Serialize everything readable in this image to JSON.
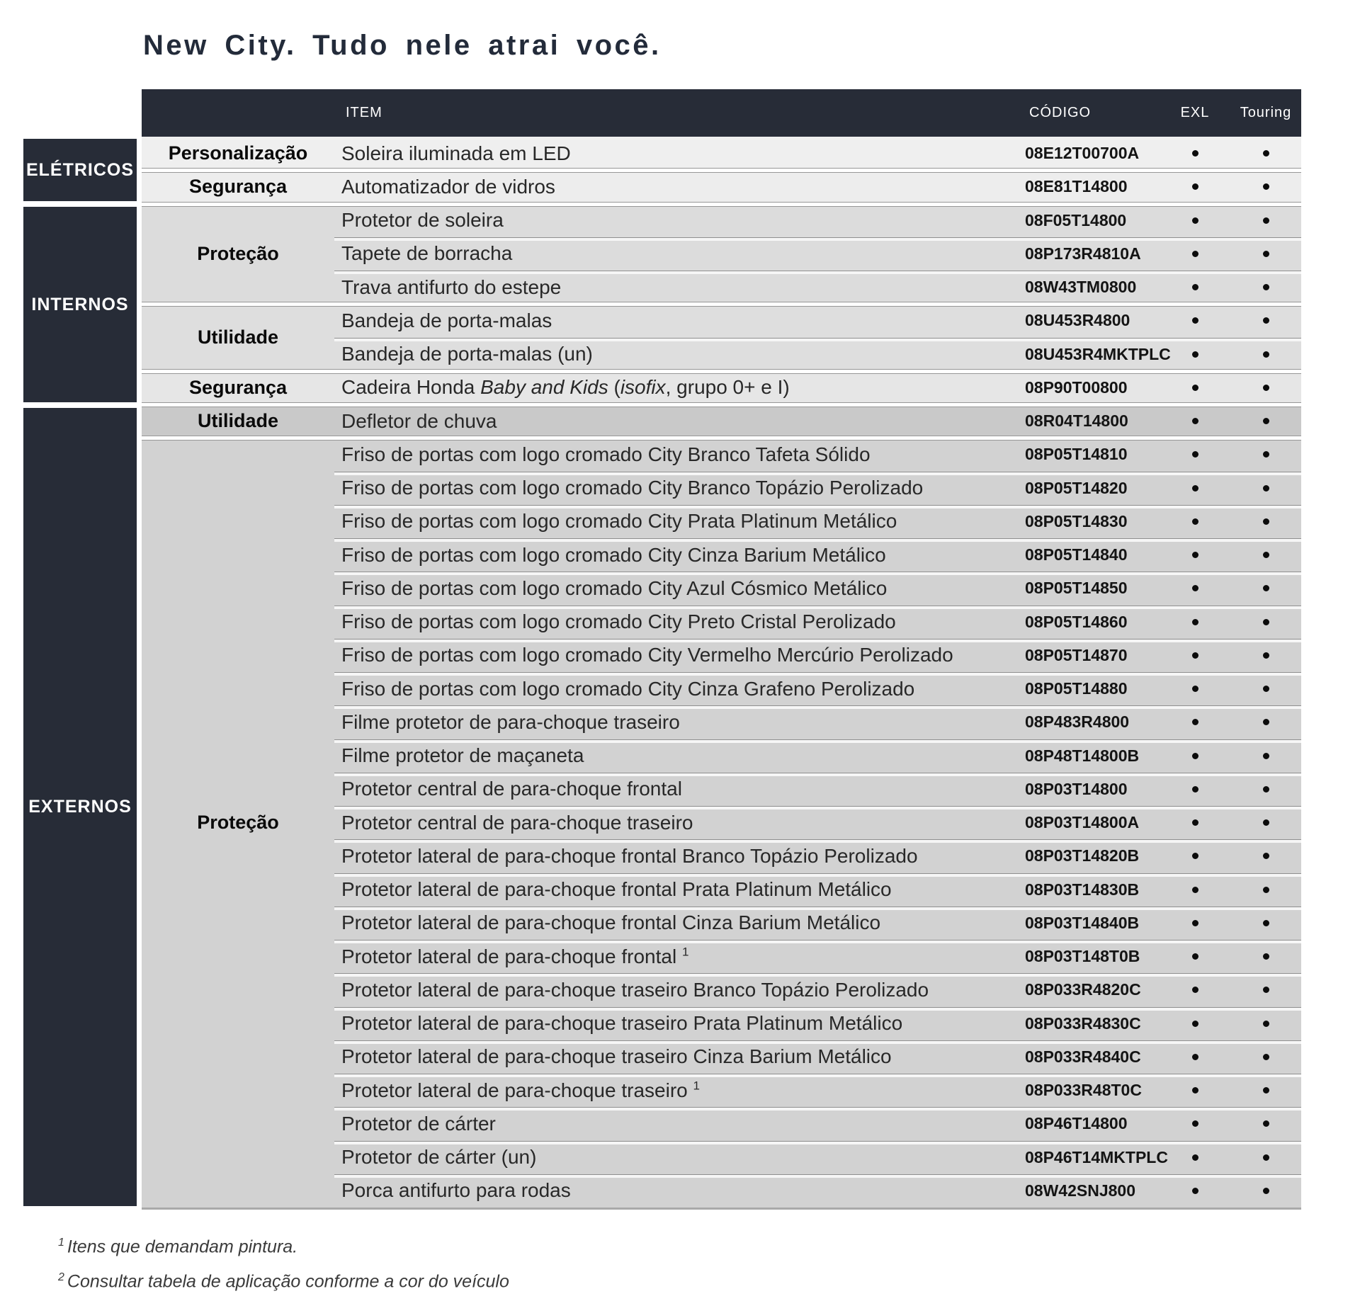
{
  "title": "New City. Tudo nele atrai você.",
  "colors": {
    "dark_panel": "#272c37",
    "title_text": "#232b3a",
    "dot": "#0c0c0c"
  },
  "table": {
    "columns": {
      "item": "ITEM",
      "codigo": "CÓDIGO",
      "exl": "EXL",
      "touring": "Touring"
    },
    "sections": [
      {
        "label": "ELÉTRICOS",
        "groups": [
          {
            "category": "Personalização",
            "bg": "#efefef",
            "rows": [
              {
                "item": "Soleira iluminada em LED",
                "codigo": "08E12T00700A",
                "exl": true,
                "touring": true
              }
            ]
          },
          {
            "category": "Segurança",
            "bg": "#ededed",
            "rows": [
              {
                "item": "Automatizador de vidros",
                "codigo": "08E81T14800",
                "exl": true,
                "touring": true
              }
            ]
          }
        ]
      },
      {
        "label": "INTERNOS",
        "groups": [
          {
            "category": "Proteção",
            "bg": "#dcdcdc",
            "rows": [
              {
                "item": "Protetor de soleira",
                "codigo": "08F05T14800",
                "exl": true,
                "touring": true
              },
              {
                "item": "Tapete de borracha",
                "codigo": "08P173R4810A",
                "exl": true,
                "touring": true
              },
              {
                "item": "Trava antifurto do estepe",
                "codigo": "08W43TM0800",
                "exl": true,
                "touring": true
              }
            ]
          },
          {
            "category": "Utilidade",
            "bg": "#dedede",
            "rows": [
              {
                "item": "Bandeja de porta-malas",
                "codigo": "08U453R4800",
                "exl": true,
                "touring": true
              },
              {
                "item": "Bandeja de porta-malas (un)",
                "codigo": "08U453R4MKTPLC",
                "exl": true,
                "touring": true
              }
            ]
          },
          {
            "category": "Segurança",
            "bg": "#e6e6e6",
            "rows": [
              {
                "item": "Cadeira Honda Baby and Kids (isofix, grupo 0+ e I)",
                "segments": [
                  {
                    "t": "Cadeira Honda "
                  },
                  {
                    "t": "Baby and Kids",
                    "i": true
                  },
                  {
                    "t": " ("
                  },
                  {
                    "t": "isofix",
                    "i": true
                  },
                  {
                    "t": ", grupo 0+ e I)"
                  }
                ],
                "codigo": "08P90T00800",
                "exl": true,
                "touring": true
              }
            ]
          }
        ]
      },
      {
        "label": "EXTERNOS",
        "groups": [
          {
            "category": "Utilidade",
            "bg": "#c9c9c9",
            "rows": [
              {
                "item": "Defletor de chuva",
                "codigo": "08R04T14800",
                "exl": true,
                "touring": true
              }
            ]
          },
          {
            "category": "Proteção",
            "bg": "#d2d2d2",
            "rows": [
              {
                "item": "Friso de portas com logo cromado City Branco Tafeta Sólido",
                "codigo": "08P05T14810",
                "exl": true,
                "touring": true
              },
              {
                "item": "Friso de portas com logo cromado City Branco Topázio Perolizado",
                "codigo": "08P05T14820",
                "exl": true,
                "touring": true
              },
              {
                "item": "Friso de portas com logo cromado City Prata Platinum Metálico",
                "codigo": "08P05T14830",
                "exl": true,
                "touring": true
              },
              {
                "item": "Friso de portas com logo cromado City Cinza Barium Metálico",
                "codigo": "08P05T14840",
                "exl": true,
                "touring": true
              },
              {
                "item": "Friso de portas com logo cromado City Azul Cósmico Metálico",
                "codigo": "08P05T14850",
                "exl": true,
                "touring": true
              },
              {
                "item": "Friso de portas com logo cromado City Preto Cristal Perolizado",
                "codigo": "08P05T14860",
                "exl": true,
                "touring": true
              },
              {
                "item": "Friso de portas com logo cromado City Vermelho Mercúrio Perolizado",
                "codigo": "08P05T14870",
                "exl": true,
                "touring": true
              },
              {
                "item": "Friso de portas com logo cromado City Cinza Grafeno Perolizado",
                "codigo": "08P05T14880",
                "exl": true,
                "touring": true
              },
              {
                "item": "Filme protetor de para-choque traseiro",
                "codigo": "08P483R4800",
                "exl": true,
                "touring": true
              },
              {
                "item": "Filme protetor de maçaneta",
                "codigo": "08P48T14800B",
                "exl": true,
                "touring": true
              },
              {
                "item": "Protetor central de para-choque frontal",
                "codigo": "08P03T14800",
                "exl": true,
                "touring": true
              },
              {
                "item": "Protetor central de para-choque traseiro",
                "codigo": "08P03T14800A",
                "exl": true,
                "touring": true
              },
              {
                "item": "Protetor lateral de para-choque frontal Branco Topázio Perolizado",
                "codigo": "08P03T14820B",
                "exl": true,
                "touring": true
              },
              {
                "item": "Protetor lateral de para-choque frontal Prata Platinum Metálico",
                "codigo": "08P03T14830B",
                "exl": true,
                "touring": true
              },
              {
                "item": "Protetor lateral de para-choque frontal Cinza Barium Metálico",
                "codigo": "08P03T14840B",
                "exl": true,
                "touring": true
              },
              {
                "item": "Protetor lateral de para-choque frontal",
                "sup": "1",
                "codigo": "08P03T148T0B",
                "exl": true,
                "touring": true
              },
              {
                "item": "Protetor lateral de para-choque traseiro Branco Topázio Perolizado",
                "codigo": "08P033R4820C",
                "exl": true,
                "touring": true
              },
              {
                "item": "Protetor lateral de para-choque traseiro Prata Platinum Metálico",
                "codigo": "08P033R4830C",
                "exl": true,
                "touring": true
              },
              {
                "item": "Protetor lateral de para-choque traseiro Cinza Barium Metálico",
                "codigo": "08P033R4840C",
                "exl": true,
                "touring": true
              },
              {
                "item": "Protetor lateral de para-choque traseiro",
                "sup": "1",
                "codigo": "08P033R48T0C",
                "exl": true,
                "touring": true
              },
              {
                "item": "Protetor de cárter",
                "codigo": "08P46T14800",
                "exl": true,
                "touring": true
              },
              {
                "item": "Protetor de cárter (un)",
                "codigo": "08P46T14MKTPLC",
                "exl": true,
                "touring": true
              },
              {
                "item": "Porca antifurto para rodas",
                "codigo": "08W42SNJ800",
                "exl": true,
                "touring": true
              }
            ]
          }
        ]
      }
    ]
  },
  "footnotes": [
    {
      "sup": "1",
      "text": "Itens que demandam pintura."
    },
    {
      "sup": "2",
      "text": "Consultar tabela de aplicação conforme a cor do veículo"
    }
  ]
}
